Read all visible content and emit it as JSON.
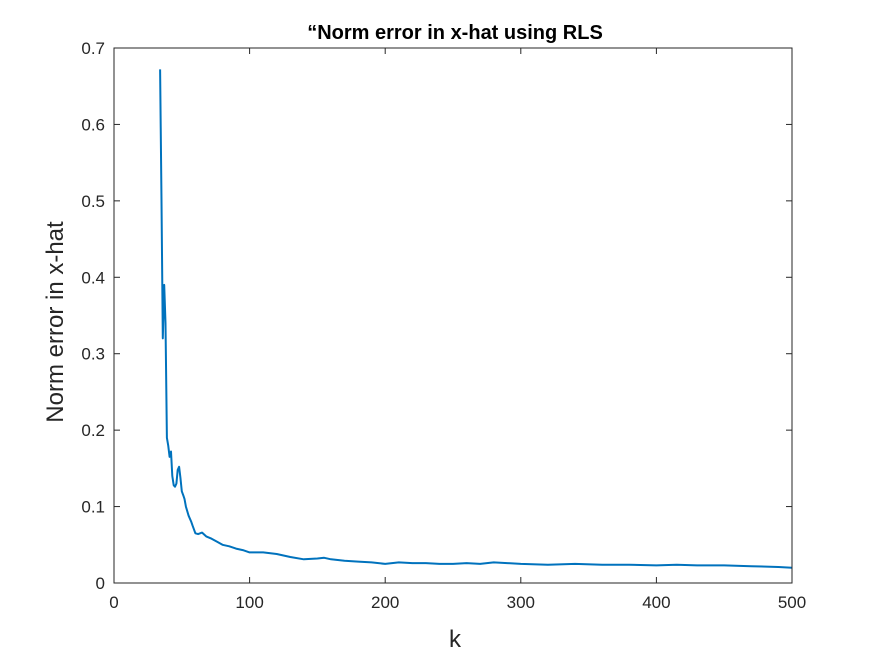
{
  "chart_data": {
    "type": "line",
    "title": "“Norm error in x-hat using RLS",
    "xlabel": "k",
    "ylabel": "Norm error in x-hat",
    "xlim": [
      0,
      500
    ],
    "ylim": [
      0,
      0.7
    ],
    "x_ticks": [
      0,
      100,
      200,
      300,
      400,
      500
    ],
    "y_ticks": [
      0,
      0.1,
      0.2,
      0.3,
      0.4,
      0.5,
      0.6,
      0.7
    ],
    "x_tick_labels": [
      "0",
      "100",
      "200",
      "300",
      "400",
      "500"
    ],
    "y_tick_labels": [
      "0",
      "0.1",
      "0.2",
      "0.3",
      "0.4",
      "0.5",
      "0.6",
      "0.7"
    ],
    "grid": false,
    "line_color": "#0072BD",
    "axis_color": "#262626",
    "series": [
      {
        "x": [
          34,
          35,
          36,
          37,
          38,
          39,
          40,
          41,
          42,
          43,
          44,
          45,
          46,
          47,
          48,
          49,
          50,
          51,
          52,
          53,
          55,
          57,
          58,
          60,
          62,
          65,
          68,
          72,
          76,
          80,
          85,
          90,
          95,
          100,
          110,
          120,
          130,
          140,
          150,
          155,
          160,
          170,
          180,
          190,
          200,
          210,
          220,
          230,
          240,
          250,
          260,
          270,
          280,
          290,
          300,
          320,
          340,
          360,
          380,
          400,
          415,
          430,
          450,
          470,
          490,
          500
        ],
        "y": [
          0.672,
          0.5,
          0.32,
          0.39,
          0.34,
          0.19,
          0.18,
          0.165,
          0.172,
          0.14,
          0.128,
          0.126,
          0.13,
          0.148,
          0.152,
          0.138,
          0.12,
          0.115,
          0.11,
          0.1,
          0.088,
          0.08,
          0.075,
          0.065,
          0.064,
          0.066,
          0.061,
          0.058,
          0.054,
          0.05,
          0.048,
          0.045,
          0.043,
          0.04,
          0.04,
          0.038,
          0.034,
          0.031,
          0.032,
          0.033,
          0.031,
          0.029,
          0.028,
          0.027,
          0.025,
          0.027,
          0.026,
          0.026,
          0.025,
          0.025,
          0.026,
          0.025,
          0.027,
          0.026,
          0.025,
          0.024,
          0.025,
          0.024,
          0.024,
          0.023,
          0.024,
          0.023,
          0.023,
          0.022,
          0.021,
          0.02
        ]
      }
    ]
  }
}
